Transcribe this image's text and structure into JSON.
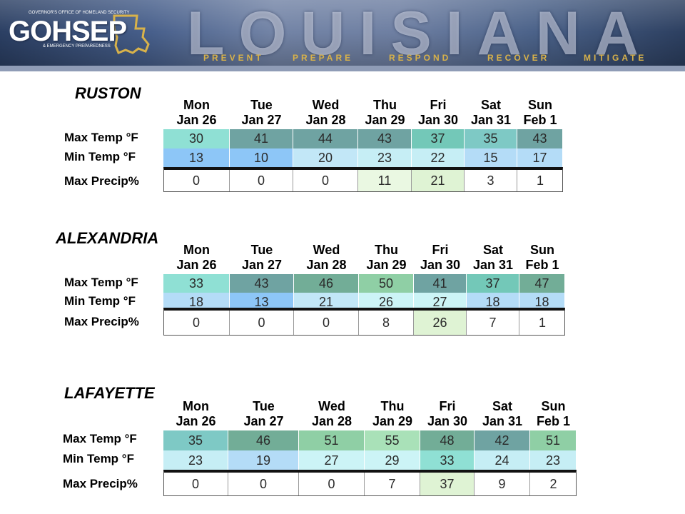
{
  "banner": {
    "logo_text": "GOHSEP",
    "logo_top_text": "GOVERNOR'S OFFICE OF HOMELAND SECURITY",
    "logo_bottom_text": "& EMERGENCY PREPAREDNESS",
    "big_word": "LOUISIANA",
    "taglines": [
      "PREVENT",
      "PREPARE",
      "RESPOND",
      "RECOVER",
      "MITIGATE"
    ]
  },
  "row_labels": {
    "max_temp": "Max Temp °F",
    "min_temp": "Min Temp °F",
    "precip": "Max Precip%"
  },
  "colors": {
    "tmax": {
      "30": "#8fe0d4",
      "33": "#8fe0d4",
      "35": "#7ec9c5",
      "37": "#73c8b8",
      "41": "#6fa3a2",
      "42": "#6fa3a2",
      "43": "#6fa3a2",
      "44": "#6fa3a2",
      "46": "#72ad97",
      "47": "#72ad97",
      "48": "#72ad97",
      "50": "#8fcfa5",
      "51": "#8fcfa5",
      "55": "#a9e1b8"
    },
    "tmin": {
      "10": "#8dc6f7",
      "13": "#8dc6f7",
      "15": "#b4dcf7",
      "17": "#b4dcf7",
      "18": "#b4dcf7",
      "19": "#b4dcf7",
      "20": "#c2e7f7",
      "21": "#c2e7f7",
      "22": "#c6eef5",
      "23": "#c6eef5",
      "24": "#c6eef5",
      "26": "#ccf4f6",
      "27": "#ccf4f6",
      "29": "#ccf4f6",
      "33": "#8fe0d4"
    },
    "precip_light": "#eaf8e2",
    "precip_mid": "#dff3d4"
  },
  "cities": [
    {
      "name": "RUSTON",
      "days": [
        {
          "dow": "Mon",
          "date": "Jan 26"
        },
        {
          "dow": "Tue",
          "date": "Jan 27"
        },
        {
          "dow": "Wed",
          "date": "Jan 28"
        },
        {
          "dow": "Thu",
          "date": "Jan 29"
        },
        {
          "dow": "Fri",
          "date": "Jan 30"
        },
        {
          "dow": "Sat",
          "date": "Jan 31"
        },
        {
          "dow": "Sun",
          "date": "Feb 1"
        }
      ],
      "max_temp": [
        "30",
        "41",
        "44",
        "43",
        "37",
        "35",
        "43"
      ],
      "min_temp": [
        "13",
        "10",
        "20",
        "23",
        "22",
        "15",
        "17"
      ],
      "precip": [
        "0",
        "0",
        "0",
        "11",
        "21",
        "3",
        "1"
      ]
    },
    {
      "name": "ALEXANDRIA",
      "days": [
        {
          "dow": "Mon",
          "date": "Jan 26"
        },
        {
          "dow": "Tue",
          "date": "Jan 27"
        },
        {
          "dow": "Wed",
          "date": "Jan 28"
        },
        {
          "dow": "Thu",
          "date": "Jan 29"
        },
        {
          "dow": "Fri",
          "date": "Jan 30"
        },
        {
          "dow": "Sat",
          "date": "Jan 31"
        },
        {
          "dow": "Sun",
          "date": "Feb 1"
        }
      ],
      "max_temp": [
        "33",
        "43",
        "46",
        "50",
        "41",
        "37",
        "47"
      ],
      "min_temp": [
        "18",
        "13",
        "21",
        "26",
        "27",
        "18",
        "18"
      ],
      "precip": [
        "0",
        "0",
        "0",
        "8",
        "26",
        "7",
        "1"
      ]
    },
    {
      "name": "LAFAYETTE",
      "days": [
        {
          "dow": "Mon",
          "date": "Jan 26"
        },
        {
          "dow": "Tue",
          "date": "Jan 27"
        },
        {
          "dow": "Wed",
          "date": "Jan 28"
        },
        {
          "dow": "Thu",
          "date": "Jan 29"
        },
        {
          "dow": "Fri",
          "date": "Jan 30"
        },
        {
          "dow": "Sat",
          "date": "Jan 31"
        },
        {
          "dow": "Sun",
          "date": "Feb 1"
        }
      ],
      "max_temp": [
        "35",
        "46",
        "51",
        "55",
        "48",
        "42",
        "51"
      ],
      "min_temp": [
        "23",
        "19",
        "27",
        "29",
        "33",
        "24",
        "23"
      ],
      "precip": [
        "0",
        "0",
        "0",
        "7",
        "37",
        "9",
        "2"
      ]
    }
  ]
}
